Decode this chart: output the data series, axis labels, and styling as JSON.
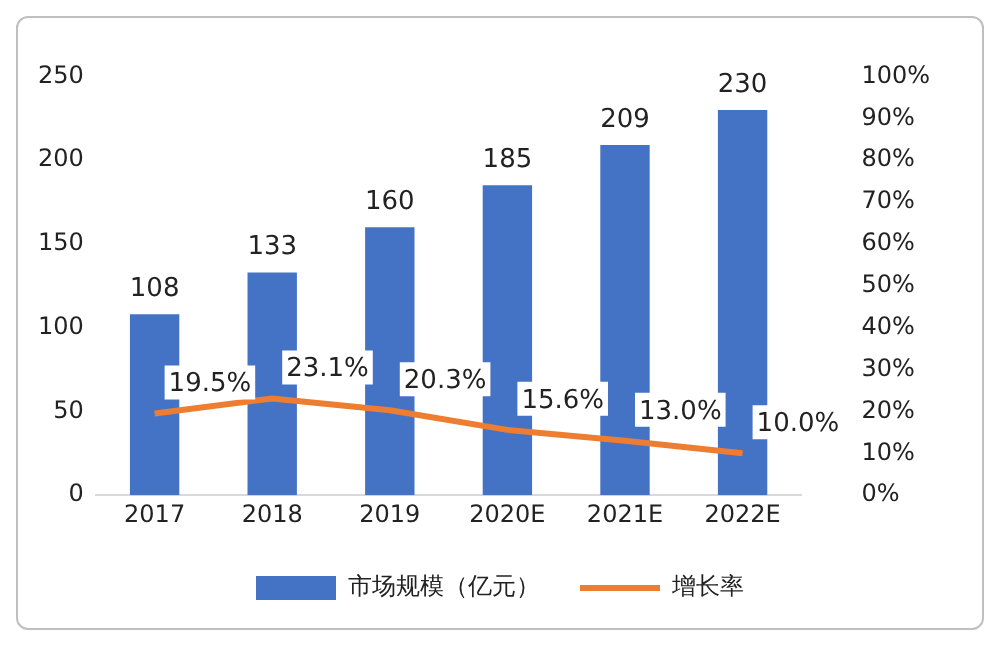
{
  "chart_data": {
    "type": "bar",
    "categories": [
      "2017",
      "2018",
      "2019",
      "2020E",
      "2021E",
      "2022E"
    ],
    "series": [
      {
        "name": "市场规模（亿元）",
        "color": "#4472c4",
        "values": [
          108,
          133,
          160,
          185,
          209,
          230
        ],
        "value_labels": [
          "108",
          "133",
          "160",
          "185",
          "209",
          "230"
        ]
      },
      {
        "name": "增长率",
        "type": "line",
        "axis": "y2",
        "color": "#ed7d31",
        "values": [
          19.5,
          23.1,
          20.3,
          15.6,
          13.0,
          10.0
        ],
        "value_labels": [
          "19.5%",
          "23.1%",
          "20.3%",
          "15.6%",
          "13.0%",
          "10.0%"
        ]
      }
    ],
    "ylim": [
      0,
      250
    ],
    "yticks": [
      0,
      50,
      100,
      150,
      200,
      250
    ],
    "y2lim": [
      0,
      100
    ],
    "y2ticks": [
      {
        "value": 0,
        "label": "0%"
      },
      {
        "value": 10,
        "label": "10%"
      },
      {
        "value": 20,
        "label": "20%"
      },
      {
        "value": 30,
        "label": "30%"
      },
      {
        "value": 40,
        "label": "40%"
      },
      {
        "value": 50,
        "label": "50%"
      },
      {
        "value": 60,
        "label": "60%"
      },
      {
        "value": 70,
        "label": "70%"
      },
      {
        "value": 80,
        "label": "80%"
      },
      {
        "value": 90,
        "label": "90%"
      },
      {
        "value": 100,
        "label": "100%"
      }
    ],
    "grid": false,
    "legend": "bottom",
    "marker": "none"
  }
}
